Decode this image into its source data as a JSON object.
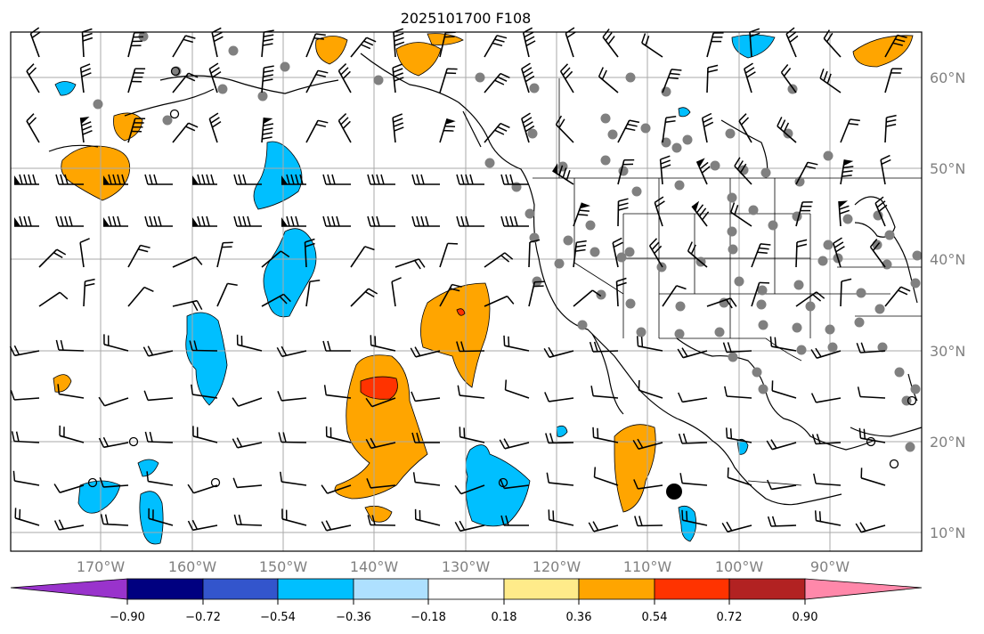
{
  "title": "2025101700 F108",
  "lat_labels": [
    "60°N",
    "50°N",
    "40°N",
    "30°N",
    "20°N",
    "10°N"
  ],
  "lon_labels": [
    "170°W",
    "160°W",
    "150°W",
    "140°W",
    "130°W",
    "120°W",
    "110°W",
    "100°W",
    "90°W"
  ],
  "colorbar": {
    "colors": [
      "#9933cc",
      "#000080",
      "#3355cc",
      "#00bfff",
      "#aee0ff",
      "#ffffff",
      "#ffeb8a",
      "#ffa500",
      "#ff3300",
      "#b22222",
      "#ff88aa"
    ],
    "tick_labels": [
      "−0.90",
      "−0.72",
      "−0.54",
      "−0.36",
      "−0.18",
      "0.18",
      "0.36",
      "0.54",
      "0.72",
      "0.90"
    ]
  },
  "colors": {
    "positive_fill": "#ffa500",
    "positive_strong_fill": "#ff3300",
    "negative_fill": "#00bfff",
    "station_marker": "#808080",
    "grid": "#aaaaaa"
  }
}
